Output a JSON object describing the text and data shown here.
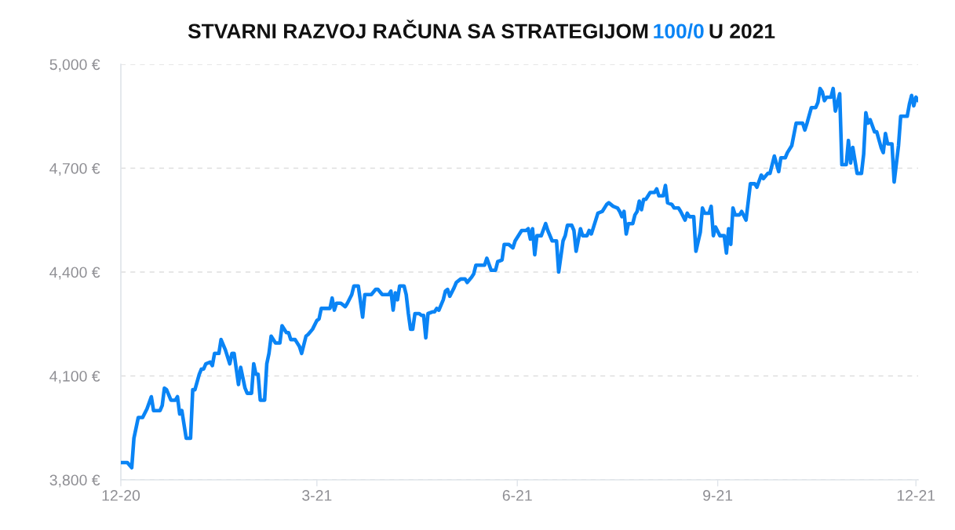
{
  "chart_data": {
    "type": "line",
    "title": "STVARNI RAZVOJ RAČUNA SA STRATEGIJOM 100/0 U 2021",
    "x": [
      "2020-12-01",
      "2020-12-04",
      "2020-12-06",
      "2020-12-07",
      "2020-12-09",
      "2020-12-11",
      "2020-12-13",
      "2020-12-15",
      "2020-12-16",
      "2020-12-19",
      "2020-12-20",
      "2020-12-21",
      "2020-12-22",
      "2020-12-24",
      "2020-12-26",
      "2020-12-27",
      "2020-12-28",
      "2020-12-29",
      "2020-12-31",
      "2021-01-02",
      "2021-01-03",
      "2021-01-04",
      "2021-01-06",
      "2021-01-07",
      "2021-01-08",
      "2021-01-09",
      "2021-01-11",
      "2021-01-12",
      "2021-01-13",
      "2021-01-15",
      "2021-01-16",
      "2021-01-18",
      "2021-01-20",
      "2021-01-21",
      "2021-01-22",
      "2021-01-24",
      "2021-01-25",
      "2021-01-27",
      "2021-01-28",
      "2021-01-30",
      "2021-01-31",
      "2021-02-01",
      "2021-02-02",
      "2021-02-03",
      "2021-02-05",
      "2021-02-06",
      "2021-02-07",
      "2021-02-08",
      "2021-02-10",
      "2021-02-12",
      "2021-02-13",
      "2021-02-15",
      "2021-02-16",
      "2021-02-17",
      "2021-02-19",
      "2021-02-21",
      "2021-02-22",
      "2021-02-24",
      "2021-02-25",
      "2021-02-27",
      "2021-03-01",
      "2021-03-02",
      "2021-03-03",
      "2021-03-07",
      "2021-03-08",
      "2021-03-09",
      "2021-03-10",
      "2021-03-12",
      "2021-03-14",
      "2021-03-15",
      "2021-03-17",
      "2021-03-18",
      "2021-03-20",
      "2021-03-22",
      "2021-03-23",
      "2021-03-26",
      "2021-03-28",
      "2021-03-29",
      "2021-03-31",
      "2021-04-03",
      "2021-04-04",
      "2021-04-05",
      "2021-04-06",
      "2021-04-07",
      "2021-04-08",
      "2021-04-10",
      "2021-04-11",
      "2021-04-12",
      "2021-04-13",
      "2021-04-14",
      "2021-04-15",
      "2021-04-17",
      "2021-04-18",
      "2021-04-19",
      "2021-04-20",
      "2021-04-21",
      "2021-04-23",
      "2021-04-24",
      "2021-04-25",
      "2021-04-26",
      "2021-04-28",
      "2021-04-29",
      "2021-04-30",
      "2021-05-01",
      "2021-05-03",
      "2021-05-04",
      "2021-05-06",
      "2021-05-08",
      "2021-05-09",
      "2021-05-11",
      "2021-05-12",
      "2021-05-13",
      "2021-05-17",
      "2021-05-18",
      "2021-05-20",
      "2021-05-22",
      "2021-05-23",
      "2021-05-25",
      "2021-05-26",
      "2021-05-28",
      "2021-05-30",
      "2021-05-31",
      "2021-06-03",
      "2021-06-05",
      "2021-06-06",
      "2021-06-07",
      "2021-06-08",
      "2021-06-09",
      "2021-06-10",
      "2021-06-12",
      "2021-06-14",
      "2021-06-15",
      "2021-06-17",
      "2021-06-19",
      "2021-06-20",
      "2021-06-22",
      "2021-06-23",
      "2021-06-24",
      "2021-06-26",
      "2021-06-27",
      "2021-06-28",
      "2021-06-30",
      "2021-07-01",
      "2021-07-03",
      "2021-07-04",
      "2021-07-05",
      "2021-07-06",
      "2021-07-08",
      "2021-07-10",
      "2021-07-12",
      "2021-07-13",
      "2021-07-15",
      "2021-07-17",
      "2021-07-18",
      "2021-07-19",
      "2021-07-20",
      "2021-07-21",
      "2021-07-22",
      "2021-07-24",
      "2021-07-25",
      "2021-07-26",
      "2021-07-27",
      "2021-07-28",
      "2021-07-29",
      "2021-07-30",
      "2021-08-01",
      "2021-08-03",
      "2021-08-04",
      "2021-08-05",
      "2021-08-07",
      "2021-08-08",
      "2021-08-09",
      "2021-08-11",
      "2021-08-12",
      "2021-08-14",
      "2021-08-15",
      "2021-08-17",
      "2021-08-18",
      "2021-08-19",
      "2021-08-21",
      "2021-08-22",
      "2021-08-24",
      "2021-08-25",
      "2021-08-26",
      "2021-08-28",
      "2021-08-29",
      "2021-08-30",
      "2021-08-31",
      "2021-09-02",
      "2021-09-04",
      "2021-09-05",
      "2021-09-06",
      "2021-09-07",
      "2021-09-08",
      "2021-09-09",
      "2021-09-11",
      "2021-09-12",
      "2021-09-14",
      "2021-09-16",
      "2021-09-18",
      "2021-09-19",
      "2021-09-21",
      "2021-09-22",
      "2021-09-24",
      "2021-09-25",
      "2021-09-27",
      "2021-09-29",
      "2021-09-30",
      "2021-10-02",
      "2021-10-03",
      "2021-10-05",
      "2021-10-07",
      "2021-10-10",
      "2021-10-11",
      "2021-10-12",
      "2021-10-14",
      "2021-10-16",
      "2021-10-17",
      "2021-10-18",
      "2021-10-19",
      "2021-10-20",
      "2021-10-21",
      "2021-10-23",
      "2021-10-24",
      "2021-10-25",
      "2021-10-26",
      "2021-10-27",
      "2021-10-28",
      "2021-10-30",
      "2021-10-31",
      "2021-11-01",
      "2021-11-02",
      "2021-11-04",
      "2021-11-06",
      "2021-11-07",
      "2021-11-08",
      "2021-11-09",
      "2021-11-10",
      "2021-11-12",
      "2021-11-13",
      "2021-11-15",
      "2021-11-16",
      "2021-11-17",
      "2021-11-18",
      "2021-11-20",
      "2021-11-21",
      "2021-11-23",
      "2021-11-24",
      "2021-11-27",
      "2021-11-28",
      "2021-11-29",
      "2021-11-30",
      "2021-12-01",
      "2021-12-02"
    ],
    "series": [
      {
        "color": "#0a84f5",
        "values": [
          3850,
          3850,
          3835,
          3920,
          3980,
          3980,
          4005,
          4040,
          4000,
          4000,
          4015,
          4065,
          4060,
          4030,
          4030,
          4040,
          3990,
          4000,
          3920,
          3920,
          4060,
          4060,
          4105,
          4120,
          4120,
          4135,
          4140,
          4130,
          4165,
          4165,
          4205,
          4175,
          4135,
          4165,
          4165,
          4075,
          4125,
          4065,
          4050,
          4050,
          4135,
          4105,
          4105,
          4030,
          4030,
          4135,
          4165,
          4215,
          4195,
          4195,
          4245,
          4225,
          4225,
          4205,
          4205,
          4185,
          4165,
          4215,
          4220,
          4235,
          4260,
          4265,
          4295,
          4295,
          4325,
          4290,
          4310,
          4310,
          4300,
          4310,
          4335,
          4360,
          4360,
          4270,
          4335,
          4335,
          4350,
          4350,
          4335,
          4335,
          4345,
          4290,
          4340,
          4320,
          4360,
          4360,
          4335,
          4280,
          4235,
          4235,
          4280,
          4280,
          4275,
          4275,
          4210,
          4280,
          4285,
          4285,
          4295,
          4290,
          4320,
          4345,
          4350,
          4330,
          4355,
          4370,
          4380,
          4380,
          4370,
          4385,
          4395,
          4420,
          4420,
          4440,
          4405,
          4405,
          4430,
          4435,
          4480,
          4480,
          4470,
          4490,
          4520,
          4520,
          4525,
          4495,
          4525,
          4450,
          4505,
          4505,
          4540,
          4520,
          4490,
          4490,
          4400,
          4490,
          4505,
          4535,
          4535,
          4520,
          4460,
          4525,
          4505,
          4505,
          4520,
          4510,
          4530,
          4570,
          4575,
          4595,
          4600,
          4590,
          4585,
          4575,
          4560,
          4575,
          4510,
          4540,
          4540,
          4565,
          4575,
          4605,
          4580,
          4610,
          4610,
          4630,
          4630,
          4640,
          4620,
          4620,
          4650,
          4600,
          4595,
          4585,
          4585,
          4575,
          4550,
          4570,
          4560,
          4560,
          4460,
          4515,
          4585,
          4570,
          4570,
          4590,
          4505,
          4530,
          4505,
          4505,
          4455,
          4525,
          4480,
          4585,
          4565,
          4565,
          4575,
          4550,
          4655,
          4655,
          4645,
          4680,
          4670,
          4685,
          4685,
          4735,
          4690,
          4730,
          4730,
          4745,
          4765,
          4830,
          4830,
          4810,
          4830,
          4875,
          4875,
          4890,
          4930,
          4920,
          4895,
          4905,
          4905,
          4930,
          4865,
          4890,
          4915,
          4710,
          4710,
          4780,
          4715,
          4760,
          4685,
          4685,
          4740,
          4860,
          4830,
          4840,
          4805,
          4805,
          4760,
          4745,
          4800,
          4770,
          4770,
          4660,
          4765,
          4850,
          4850,
          4885,
          4910,
          4880,
          4905,
          4895
        ]
      }
    ],
    "xlim": [
      "2020-12-01",
      "2021-12-02"
    ],
    "xticks": [
      {
        "value": "2020-12-01",
        "label": "12-20"
      },
      {
        "value": "2021-03-01",
        "label": "3-21"
      },
      {
        "value": "2021-06-01",
        "label": "6-21"
      },
      {
        "value": "2021-09-01",
        "label": "9-21"
      },
      {
        "value": "2021-12-01",
        "label": "12-21"
      }
    ],
    "ylim": [
      3800,
      5000
    ],
    "yticks": [
      {
        "value": 3800,
        "label": "3,800 €"
      },
      {
        "value": 4100,
        "label": "4,100 €"
      },
      {
        "value": 4400,
        "label": "4,400 €"
      },
      {
        "value": 4700,
        "label": "4,700 €"
      },
      {
        "value": 5000,
        "label": "5,000 €"
      }
    ],
    "grid": "y",
    "line_style": "solid"
  }
}
